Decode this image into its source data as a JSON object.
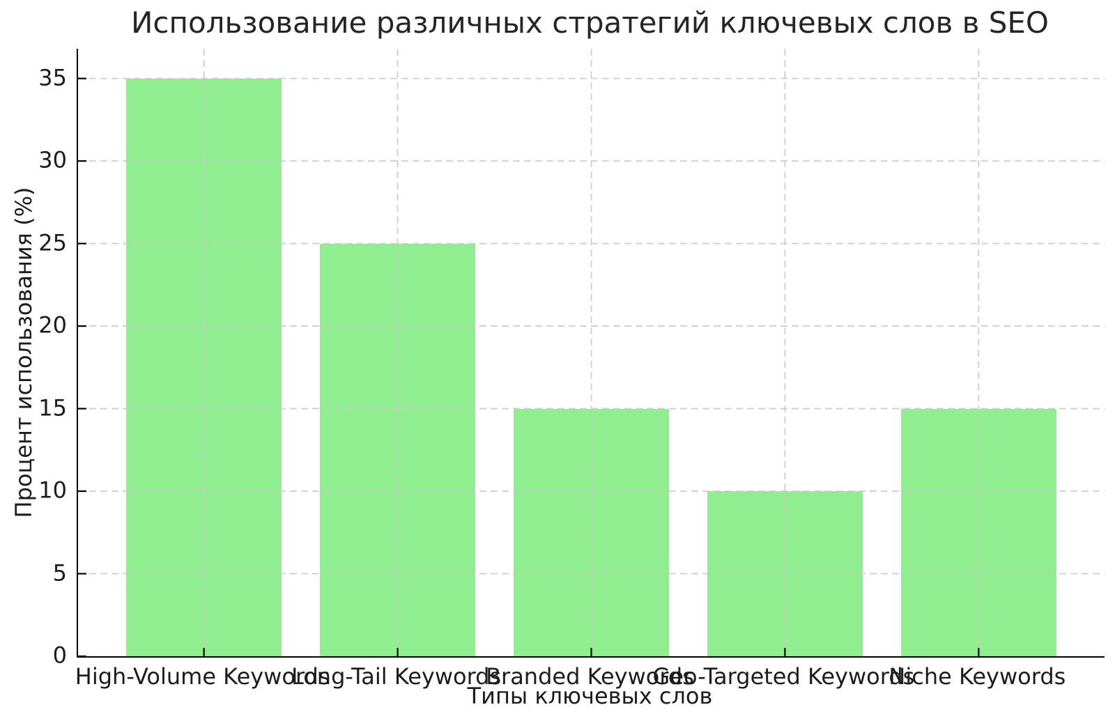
{
  "figure": {
    "background": "#ffffff",
    "text_color": "#1c1c1c"
  },
  "chart_data": {
    "type": "bar",
    "title": "Использование различных стратегий ключевых слов в SEO",
    "xlabel": "Типы ключевых слов",
    "ylabel": "Процент использования (%)",
    "categories": [
      "High-Volume Keywords",
      "Long-Tail Keywords",
      "Branded Keywords",
      "Geo-Targeted Keywords",
      "Niche Keywords"
    ],
    "values": [
      35,
      25,
      15,
      10,
      15
    ],
    "yticks": [
      0,
      5,
      10,
      15,
      20,
      25,
      30,
      35
    ],
    "ylim": [
      0,
      36.8
    ],
    "xlim": [
      -0.65,
      4.65
    ],
    "bar_width": 0.8,
    "bar_color": "#90ee90",
    "grid": true,
    "grid_style": "dashed",
    "grid_color": "#c9c9c9",
    "grid_over_bars": true,
    "axis_color": "#000000",
    "legend": "none"
  }
}
